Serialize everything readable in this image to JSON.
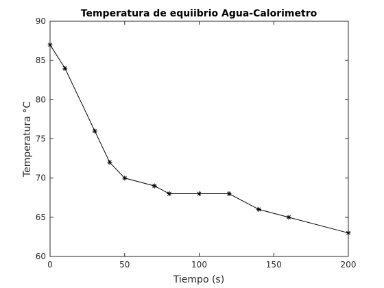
{
  "chart_data": {
    "type": "line",
    "title": "Temperatura de equiibrio Agua-Calorimetro",
    "xlabel": "Tiempo (s)",
    "ylabel": "Temperatura °C",
    "xlim": [
      0,
      200
    ],
    "ylim": [
      60,
      90
    ],
    "xticks": [
      0,
      50,
      100,
      150,
      200
    ],
    "yticks": [
      60,
      65,
      70,
      75,
      80,
      85,
      90
    ],
    "grid": false,
    "marker": "asterisk",
    "line_color": "#000000",
    "series": [
      {
        "x": [
          0,
          10,
          30,
          40,
          50,
          70,
          80,
          100,
          120,
          140,
          160,
          200
        ],
        "y": [
          87,
          84,
          76,
          72,
          70,
          69,
          68,
          68,
          68,
          66,
          65,
          63
        ]
      }
    ]
  }
}
